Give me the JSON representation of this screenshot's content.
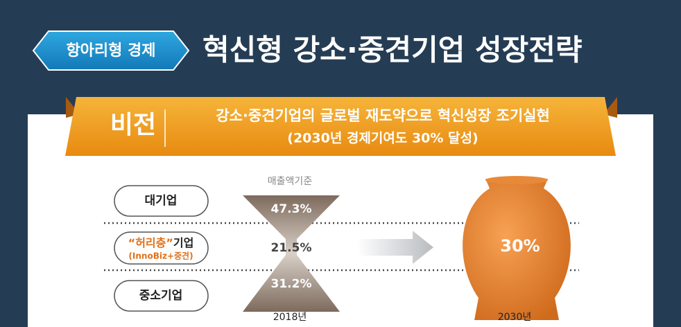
{
  "header": {
    "badge": "항아리형 경제",
    "title": "혁신형 강소·중견기업 성장전략"
  },
  "vision": {
    "label": "비전",
    "line1": "강소·중견기업의 글로벌 재도약으로 혁신성장 조기실현",
    "line2": "(2030년 경제기여도 30% 달성)"
  },
  "basis": "매출액기준",
  "tiers": [
    {
      "name": "대기업",
      "value": "47.3%"
    },
    {
      "highlight": "“허리층”",
      "name": "기업",
      "sub": "(InnoBiz+중견)",
      "value": "21.5%"
    },
    {
      "name": "중소기업",
      "value": "31.2%"
    }
  ],
  "years": [
    "2018년",
    "2030년"
  ],
  "target": "30%"
}
